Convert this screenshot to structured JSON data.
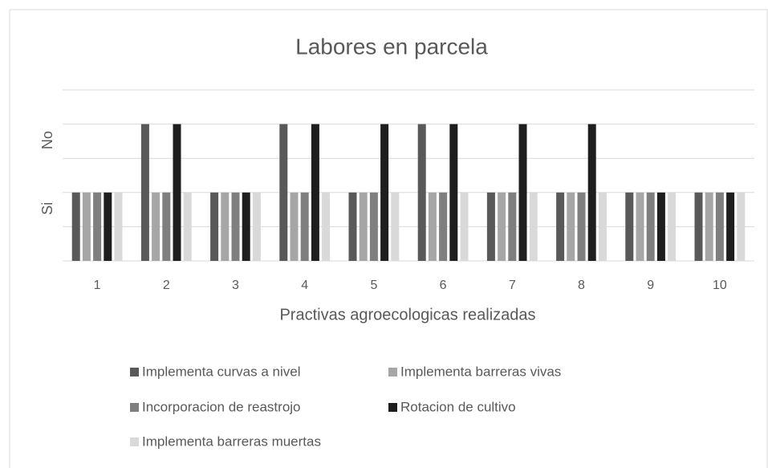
{
  "chart_data": {
    "type": "bar",
    "title": "Labores en parcela",
    "xlabel": "Practivas agroecologicas realizadas",
    "categories": [
      "1",
      "2",
      "3",
      "4",
      "5",
      "6",
      "7",
      "8",
      "9",
      "10"
    ],
    "series": [
      {
        "name": "Implementa curvas a nivel",
        "color": "#595959",
        "values": [
          1,
          2,
          1,
          2,
          1,
          2,
          1,
          1,
          1,
          1
        ]
      },
      {
        "name": "Implementa barreras vivas",
        "color": "#a6a6a6",
        "values": [
          1,
          1,
          1,
          1,
          1,
          1,
          1,
          1,
          1,
          1
        ]
      },
      {
        "name": "Incorporacion de reastrojo",
        "color": "#7f7f7f",
        "values": [
          1,
          1,
          1,
          1,
          1,
          1,
          1,
          1,
          1,
          1
        ]
      },
      {
        "name": "Rotacion de cultivo",
        "color": "#1e1e1e",
        "values": [
          1,
          2,
          1,
          2,
          2,
          2,
          2,
          2,
          1,
          1
        ]
      },
      {
        "name": "Implementa barreras muertas",
        "color": "#d9d9d9",
        "values": [
          1,
          1,
          1,
          1,
          1,
          1,
          1,
          1,
          1,
          1
        ]
      }
    ],
    "ylim": [
      0,
      2.5
    ],
    "yticks": [
      0,
      0.5,
      1,
      1.5,
      2,
      2.5
    ],
    "ytick_labels": [
      {
        "value": 1,
        "label": "Si"
      },
      {
        "value": 2,
        "label": "No"
      }
    ],
    "grid": true
  }
}
